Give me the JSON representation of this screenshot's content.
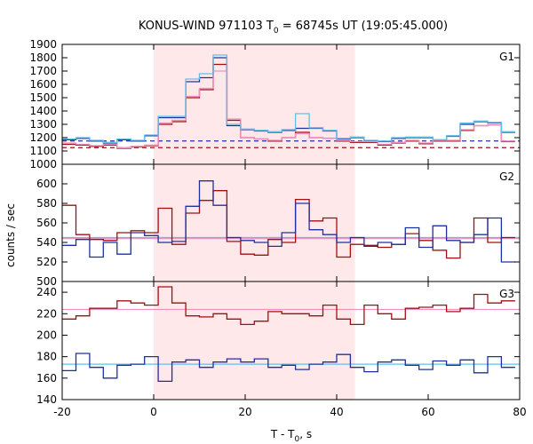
{
  "title": {
    "main": "KONUS-WIND 971103 T",
    "sub": "0",
    "rest": " = 68745s UT (19:05:45.000)"
  },
  "axes": {
    "ylabel": "counts / sec",
    "xlabel_main": "T - T",
    "xlabel_sub": "0",
    "xlabel_rest": ", s"
  },
  "chart_data": {
    "type": "line",
    "style": "step",
    "x_range": [
      -20,
      80
    ],
    "x_ticks": [
      -20,
      0,
      20,
      40,
      60,
      80
    ],
    "highlight_interval": [
      0,
      44
    ],
    "colors": {
      "highlight": "#ffe8ea",
      "red": "#a01010",
      "blue": "#2030a0",
      "pink": "#f090c0",
      "cyan": "#60c0ea"
    },
    "panels": [
      {
        "label": "G1",
        "ylim": [
          1000,
          1900
        ],
        "yticks": [
          1000,
          1100,
          1200,
          1300,
          1400,
          1500,
          1600,
          1700,
          1800,
          1900
        ],
        "series": [
          {
            "color": "red",
            "x": [
              -20,
              -17,
              -14,
              -11,
              -8,
              -5,
              -2,
              1,
              4,
              7,
              10,
              13,
              16,
              19,
              22,
              25,
              28,
              31,
              34,
              37,
              40,
              43,
              46,
              49,
              52,
              55,
              58,
              61,
              64,
              67,
              70,
              73,
              76
            ],
            "y": [
              1150,
              1145,
              1135,
              1145,
              1120,
              1130,
              1140,
              1300,
              1320,
              1500,
              1560,
              1750,
              1330,
              1200,
              1190,
              1175,
              1200,
              1240,
              1200,
              1195,
              1175,
              1165,
              1165,
              1145,
              1160,
              1175,
              1155,
              1175,
              1175,
              1255,
              1290,
              1295,
              1170
            ]
          },
          {
            "color": "blue",
            "x": [
              -20,
              -17,
              -14,
              -11,
              -8,
              -5,
              -2,
              1,
              4,
              7,
              10,
              13,
              16,
              19,
              22,
              25,
              28,
              31,
              34,
              37,
              40,
              43,
              46,
              49,
              52,
              55,
              58,
              61,
              64,
              67,
              70,
              73,
              76
            ],
            "y": [
              1185,
              1195,
              1175,
              1160,
              1185,
              1175,
              1215,
              1350,
              1350,
              1620,
              1650,
              1800,
              1290,
              1260,
              1250,
              1240,
              1255,
              1270,
              1270,
              1250,
              1190,
              1200,
              1175,
              1170,
              1195,
              1200,
              1200,
              1180,
              1210,
              1300,
              1320,
              1310,
              1240
            ]
          },
          {
            "color": "pink",
            "x": [
              -20,
              -17,
              -14,
              -11,
              -8,
              -5,
              -2,
              1,
              4,
              7,
              10,
              13,
              16,
              19,
              22,
              25,
              28,
              31,
              34,
              37,
              40,
              43,
              46,
              49,
              52,
              55,
              58,
              61,
              64,
              67,
              70,
              73,
              76
            ],
            "y": [
              1160,
              1150,
              1140,
              1150,
              1125,
              1135,
              1145,
              1310,
              1330,
              1510,
              1570,
              1700,
              1340,
              1200,
              1190,
              1180,
              1200,
              1230,
              1200,
              1195,
              1180,
              1170,
              1170,
              1150,
              1165,
              1180,
              1160,
              1180,
              1180,
              1260,
              1290,
              1295,
              1175
            ]
          },
          {
            "color": "cyan",
            "x": [
              -20,
              -17,
              -14,
              -11,
              -8,
              -5,
              -2,
              1,
              4,
              7,
              10,
              13,
              16,
              19,
              22,
              25,
              28,
              31,
              34,
              37,
              40,
              43,
              46,
              49,
              52,
              55,
              58,
              61,
              64,
              67,
              70,
              73,
              76
            ],
            "y": [
              1190,
              1200,
              1180,
              1165,
              1190,
              1180,
              1220,
              1360,
              1360,
              1640,
              1680,
              1820,
              1300,
              1265,
              1255,
              1245,
              1260,
              1380,
              1275,
              1255,
              1195,
              1205,
              1180,
              1175,
              1200,
              1205,
              1205,
              1185,
              1215,
              1310,
              1325,
              1315,
              1245
            ]
          }
        ],
        "backgrounds": [
          {
            "color": "red",
            "value": 1125,
            "dashed": true
          },
          {
            "color": "blue",
            "value": 1175,
            "dashed": true
          }
        ]
      },
      {
        "label": "G2",
        "ylim": [
          500,
          620
        ],
        "yticks": [
          500,
          520,
          540,
          560,
          580,
          600
        ],
        "series": [
          {
            "color": "red",
            "x": [
              -20,
              -17,
              -14,
              -11,
              -8,
              -5,
              -2,
              1,
              4,
              7,
              10,
              13,
              16,
              19,
              22,
              25,
              28,
              31,
              34,
              37,
              40,
              43,
              46,
              49,
              52,
              55,
              58,
              61,
              64,
              67,
              70,
              73,
              76
            ],
            "y": [
              578,
              548,
              543,
              542,
              550,
              552,
              550,
              575,
              538,
              570,
              583,
              593,
              541,
              528,
              527,
              543,
              540,
              584,
              562,
              565,
              525,
              538,
              537,
              535,
              538,
              549,
              542,
              532,
              524,
              540,
              565,
              540,
              545
            ]
          },
          {
            "color": "blue",
            "x": [
              -20,
              -17,
              -14,
              -11,
              -8,
              -5,
              -2,
              1,
              4,
              7,
              10,
              13,
              16,
              19,
              22,
              25,
              28,
              31,
              34,
              37,
              40,
              43,
              46,
              49,
              52,
              55,
              58,
              61,
              64,
              67,
              70,
              73,
              76
            ],
            "y": [
              537,
              543,
              525,
              540,
              528,
              550,
              547,
              540,
              541,
              577,
              603,
              578,
              545,
              542,
              540,
              536,
              550,
              580,
              553,
              548,
              540,
              545,
              536,
              540,
              538,
              555,
              535,
              557,
              542,
              540,
              548,
              565,
              520
            ]
          }
        ],
        "backgrounds": [
          {
            "color": "pink",
            "value": 544,
            "dashed": false
          },
          {
            "color": "cyan",
            "value": 545,
            "dashed": false
          }
        ]
      },
      {
        "label": "G3",
        "ylim": [
          140,
          250
        ],
        "yticks": [
          140,
          160,
          180,
          200,
          220,
          240
        ],
        "series": [
          {
            "color": "red",
            "x": [
              -20,
              -17,
              -14,
              -11,
              -8,
              -5,
              -2,
              1,
              4,
              7,
              10,
              13,
              16,
              19,
              22,
              25,
              28,
              31,
              34,
              37,
              40,
              43,
              46,
              49,
              52,
              55,
              58,
              61,
              64,
              67,
              70,
              73,
              76
            ],
            "y": [
              215,
              218,
              225,
              225,
              232,
              230,
              228,
              245,
              230,
              218,
              217,
              220,
              215,
              210,
              213,
              222,
              220,
              220,
              218,
              228,
              215,
              210,
              228,
              220,
              215,
              225,
              226,
              228,
              222,
              225,
              238,
              230,
              232
            ]
          },
          {
            "color": "blue",
            "x": [
              -20,
              -17,
              -14,
              -11,
              -8,
              -5,
              -2,
              1,
              4,
              7,
              10,
              13,
              16,
              19,
              22,
              25,
              28,
              31,
              34,
              37,
              40,
              43,
              46,
              49,
              52,
              55,
              58,
              61,
              64,
              67,
              70,
              73,
              76
            ],
            "y": [
              167,
              183,
              170,
              160,
              172,
              173,
              180,
              157,
              175,
              177,
              170,
              175,
              178,
              175,
              178,
              170,
              172,
              168,
              173,
              175,
              182,
              170,
              166,
              175,
              177,
              172,
              168,
              176,
              172,
              177,
              165,
              180,
              170
            ]
          }
        ],
        "backgrounds": [
          {
            "color": "pink",
            "value": 224,
            "dashed": false
          },
          {
            "color": "cyan",
            "value": 173,
            "dashed": false
          }
        ]
      }
    ]
  }
}
